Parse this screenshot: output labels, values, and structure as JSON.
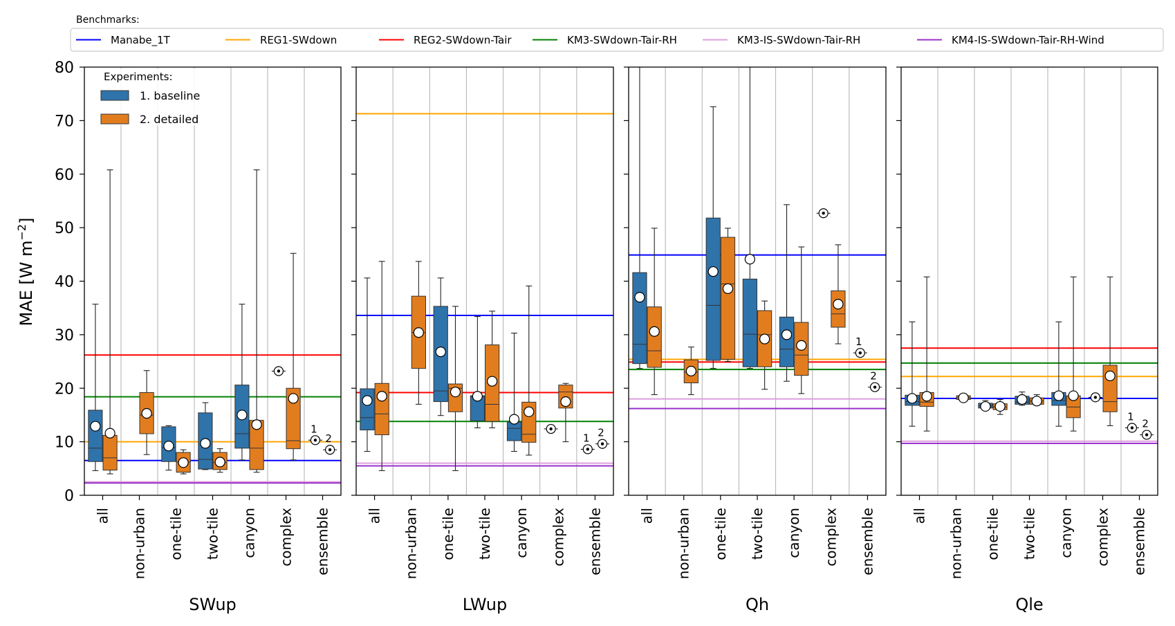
{
  "chart_data": {
    "type": "box",
    "ylabel": "MAE [W m",
    "ylabel_sup": "−2",
    "ylabel_close": "]",
    "ylim": [
      0,
      80
    ],
    "yticks": [
      0,
      10,
      20,
      30,
      40,
      50,
      60,
      70,
      80
    ],
    "categories": [
      "all",
      "non-urban",
      "one-tile",
      "two-tile",
      "canyon",
      "complex",
      "ensemble"
    ],
    "grid": "vertical",
    "benchmarks_title": "Benchmarks:",
    "benchmarks": [
      {
        "name": "Manabe_1T",
        "color": "#0000ff"
      },
      {
        "name": "REG1-SWdown",
        "color": "#ffa500"
      },
      {
        "name": "REG2-SWdown-Tair",
        "color": "#ff0000"
      },
      {
        "name": "KM3-SWdown-Tair-RH",
        "color": "#008000"
      },
      {
        "name": "KM3-IS-SWdown-Tair-RH",
        "color": "#dda0dd"
      },
      {
        "name": "KM4-IS-SWdown-Tair-RH-Wind",
        "color": "#9932cc"
      }
    ],
    "experiments_title": "Experiments:",
    "experiments": [
      {
        "name": "1. baseline",
        "color": "#2f73ab",
        "marker": "1"
      },
      {
        "name": "2. detailed",
        "color": "#e27d1f",
        "marker": "2"
      }
    ],
    "panels": [
      {
        "title": "SWup",
        "benchmark_values": [
          6.5,
          10.0,
          26.2,
          18.4,
          2.5,
          2.3
        ],
        "boxes": {
          "all": [
            {
              "min": 4.6,
              "q1": 6.3,
              "med": 8.8,
              "q3": 15.9,
              "max": 35.7,
              "mean": 12.9
            },
            {
              "min": 4.0,
              "q1": 4.7,
              "med": 7.0,
              "q3": 11.2,
              "max": 60.8,
              "mean": 11.6
            }
          ],
          "non-urban": [
            null,
            {
              "min": 7.6,
              "q1": 11.5,
              "med": 15.0,
              "q3": 19.2,
              "max": 23.3,
              "mean": 15.3
            }
          ],
          "one-tile": [
            {
              "min": 4.7,
              "q1": 6.3,
              "med": 8.9,
              "q3": 12.8,
              "max": 13.0,
              "mean": 9.2
            },
            {
              "min": 4.0,
              "q1": 4.3,
              "med": 6.2,
              "q3": 8.0,
              "max": 8.5,
              "mean": 6.1
            }
          ],
          "two-tile": [
            {
              "min": 4.8,
              "q1": 4.9,
              "med": 6.7,
              "q3": 15.4,
              "max": 17.3,
              "mean": 9.7
            },
            {
              "min": 4.3,
              "q1": 4.8,
              "med": 6.1,
              "q3": 8.0,
              "max": 8.7,
              "mean": 6.2
            }
          ],
          "canyon": [
            {
              "min": 6.6,
              "q1": 8.8,
              "med": 11.5,
              "q3": 20.6,
              "max": 35.7,
              "mean": 15.0
            },
            {
              "min": 4.3,
              "q1": 4.8,
              "med": 8.8,
              "q3": 14.0,
              "max": 60.8,
              "mean": 13.2
            }
          ],
          "complex": [
            {
              "single": 23.2
            },
            {
              "min": 6.6,
              "q1": 8.7,
              "med": 10.2,
              "q3": 20.0,
              "max": 45.2,
              "mean": 18.1
            }
          ],
          "ensemble": [
            {
              "single": 10.3
            },
            {
              "single": 8.5
            }
          ]
        }
      },
      {
        "title": "LWup",
        "benchmark_values": [
          33.6,
          71.3,
          19.2,
          13.8,
          6.0,
          5.5
        ],
        "boxes": {
          "all": [
            {
              "min": 8.2,
              "q1": 12.2,
              "med": 14.5,
              "q3": 19.9,
              "max": 40.6,
              "mean": 17.7
            },
            {
              "min": 4.6,
              "q1": 11.3,
              "med": 15.2,
              "q3": 20.9,
              "max": 43.7,
              "mean": 18.5
            }
          ],
          "non-urban": [
            null,
            {
              "min": 17.0,
              "q1": 23.7,
              "med": 30.4,
              "q3": 37.2,
              "max": 43.7,
              "mean": 30.4
            }
          ],
          "one-tile": [
            {
              "min": 14.9,
              "q1": 17.5,
              "med": 19.5,
              "q3": 35.3,
              "max": 40.6,
              "mean": 26.8
            },
            {
              "min": 4.6,
              "q1": 15.6,
              "med": 20.0,
              "q3": 20.8,
              "max": 35.3,
              "mean": 19.3
            }
          ],
          "two-tile": [
            {
              "min": 12.6,
              "q1": 13.9,
              "med": 18.4,
              "q3": 18.6,
              "max": 33.4,
              "mean": 18.5
            },
            {
              "min": 12.6,
              "q1": 13.8,
              "med": 17.0,
              "q3": 28.1,
              "max": 34.4,
              "mean": 21.3
            }
          ],
          "canyon": [
            {
              "min": 8.2,
              "q1": 10.2,
              "med": 12.5,
              "q3": 13.7,
              "max": 30.3,
              "mean": 14.2
            },
            {
              "min": 7.5,
              "q1": 9.9,
              "med": 11.4,
              "q3": 17.4,
              "max": 39.1,
              "mean": 15.6
            }
          ],
          "complex": [
            {
              "single": 12.4
            },
            {
              "min": 10.0,
              "q1": 16.3,
              "med": 19.3,
              "q3": 20.6,
              "max": 20.9,
              "mean": 17.5
            }
          ],
          "ensemble": [
            {
              "single": 8.6
            },
            {
              "single": 9.6
            }
          ]
        }
      },
      {
        "title": "Qh",
        "benchmark_values": [
          44.9,
          25.4,
          24.9,
          23.5,
          18.0,
          16.2
        ],
        "boxes": {
          "all": [
            {
              "min": 23.7,
              "q1": 24.6,
              "med": 28.2,
              "q3": 41.6,
              "max": 80,
              "mean": 37.0
            },
            {
              "min": 18.8,
              "q1": 23.9,
              "med": 27.0,
              "q3": 35.2,
              "max": 49.9,
              "mean": 30.6
            }
          ],
          "non-urban": [
            null,
            {
              "min": 18.8,
              "q1": 21.0,
              "med": 23.0,
              "q3": 25.3,
              "max": 27.7,
              "mean": 23.2
            }
          ],
          "one-tile": [
            {
              "min": 23.7,
              "q1": 25.2,
              "med": 35.5,
              "q3": 51.8,
              "max": 72.6,
              "mean": 41.8
            },
            {
              "min": 25.0,
              "q1": 25.4,
              "med": 39.5,
              "q3": 48.2,
              "max": 49.9,
              "mean": 38.6
            }
          ],
          "two-tile": [
            {
              "min": 23.7,
              "q1": 24.0,
              "med": 30.1,
              "q3": 40.4,
              "max": 80,
              "mean": 44.1
            },
            {
              "min": 19.8,
              "q1": 24.0,
              "med": 30.0,
              "q3": 34.5,
              "max": 36.3,
              "mean": 29.2
            }
          ],
          "canyon": [
            {
              "min": 21.3,
              "q1": 24.0,
              "med": 27.3,
              "q3": 33.3,
              "max": 54.3,
              "mean": 30.0
            },
            {
              "min": 19.0,
              "q1": 22.4,
              "med": 26.2,
              "q3": 32.3,
              "max": 46.4,
              "mean": 28.0
            }
          ],
          "complex": [
            {
              "single": 52.7
            },
            {
              "min": 28.3,
              "q1": 31.4,
              "med": 33.9,
              "q3": 38.2,
              "max": 46.8,
              "mean": 35.7
            }
          ],
          "ensemble": [
            {
              "single": 26.6
            },
            {
              "single": 20.2
            }
          ]
        }
      },
      {
        "title": "Qle",
        "benchmark_values": [
          18.1,
          22.2,
          27.5,
          24.7,
          10.1,
          9.7
        ],
        "boxes": {
          "all": [
            {
              "min": 12.9,
              "q1": 16.8,
              "med": 17.5,
              "q3": 18.7,
              "max": 32.4,
              "mean": 18.1
            },
            {
              "min": 12.0,
              "q1": 16.6,
              "med": 17.4,
              "q3": 19.2,
              "max": 40.8,
              "mean": 18.5
            }
          ],
          "non-urban": [
            null,
            {
              "min": 17.7,
              "q1": 17.9,
              "med": 18.2,
              "q3": 18.6,
              "max": 18.9,
              "mean": 18.2
            }
          ],
          "one-tile": [
            {
              "min": 15.9,
              "q1": 16.3,
              "med": 16.7,
              "q3": 17.2,
              "max": 17.7,
              "mean": 16.6
            },
            {
              "min": 15.1,
              "q1": 16.0,
              "med": 16.5,
              "q3": 17.1,
              "max": 17.9,
              "mean": 16.6
            }
          ],
          "two-tile": [
            {
              "min": 16.8,
              "q1": 17.0,
              "med": 17.4,
              "q3": 18.5,
              "max": 19.3,
              "mean": 17.9
            },
            {
              "min": 16.8,
              "q1": 17.0,
              "med": 17.6,
              "q3": 18.2,
              "max": 18.8,
              "mean": 17.6
            }
          ],
          "canyon": [
            {
              "min": 12.9,
              "q1": 16.8,
              "med": 17.7,
              "q3": 19.2,
              "max": 32.4,
              "mean": 18.6
            },
            {
              "min": 12.0,
              "q1": 14.5,
              "med": 16.5,
              "q3": 18.6,
              "max": 40.8,
              "mean": 18.6
            }
          ],
          "complex": [
            {
              "single": 18.3
            },
            {
              "min": 13.0,
              "q1": 15.6,
              "med": 17.5,
              "q3": 24.3,
              "max": 40.8,
              "mean": 22.3
            }
          ],
          "ensemble": [
            {
              "single": 12.6
            },
            {
              "single": 11.3
            }
          ]
        }
      }
    ]
  }
}
